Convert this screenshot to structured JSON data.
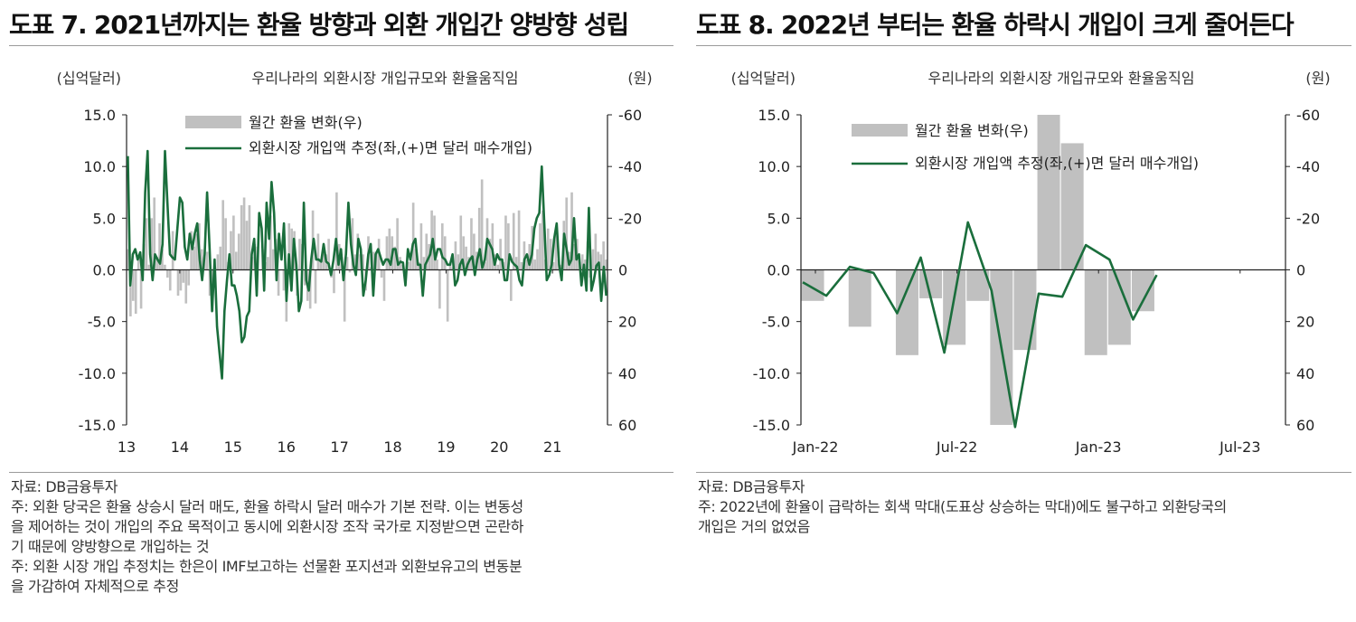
{
  "panels": [
    {
      "title": "도표 7. 2021년까지는 환율 방향과 외환 개입간 양방향 성립",
      "source": "자료: DB금융투자",
      "notes": [
        "주: 외환 당국은 환율 상승시 달러 매도, 환율 하락시 달러 매수가 기본 전략. 이는 변동성",
        "을 제어하는 것이 개입의 주요 목적이고 동시에 외환시장 조작 국가로 지정받으면 곤란하",
        "기 때문에 양방향으로 개입하는 것",
        " 주: 외환 시장 개입 추정치는 한은이 IMF보고하는 선물환 포지션과 외환보유고의 변동분",
        "을 가감하여 자체적으로 추정"
      ]
    },
    {
      "title": "도표 8. 2022년 부터는 환율 하락시 개입이 크게 줄어든다",
      "source": "자료: DB금융투자",
      "notes": [
        "주: 2022년에 환율이 급락하는 회색 막대(도표상 상승하는 막대)에도 불구하고 외환당국의",
        "개입은 거의 없었음"
      ]
    }
  ],
  "chart_data": [
    {
      "type": "bar+line",
      "title": "우리나라의 외환시장 개입규모와 환율움직임",
      "ylabel_left": "(십억달러)",
      "ylabel_right": "(원)",
      "ylim_left": [
        -15,
        15
      ],
      "ylim_right": [
        60,
        -60
      ],
      "yticks_left": [
        "15.0",
        "10.0",
        "5.0",
        "0.0",
        "-5.0",
        "-10.0",
        "-15.0"
      ],
      "yticks_right": [
        "-60",
        "-40",
        "-20",
        "0",
        "20",
        "40",
        "60"
      ],
      "xticks": [
        "13",
        "14",
        "15",
        "16",
        "17",
        "18",
        "19",
        "20",
        "21"
      ],
      "x_start": 2013,
      "legend": [
        "월간 환율 변화(우)",
        "외환시장 개입액 추정(좌,(+)면 달러 매수개입)"
      ],
      "colors": {
        "bar": "#c0c0c0",
        "line": "#1a6e3c"
      },
      "series": [
        {
          "name": "월간 환율 변화(우)",
          "axis": "right",
          "values": [
            -8,
            18,
            12,
            17,
            -5,
            15,
            -10,
            -20,
            -2,
            -20,
            -28,
            -5,
            -18,
            -8,
            -2,
            3,
            8,
            -15,
            0,
            10,
            8,
            5,
            13,
            6,
            -15,
            -9,
            -14,
            -18,
            -8,
            -5,
            -7,
            10,
            16,
            -1,
            -6,
            -9,
            -27,
            -20,
            -3,
            -15,
            -21,
            -7,
            -14,
            -25,
            -28,
            -19,
            -25,
            -5,
            -10,
            -9,
            0,
            -8,
            -3,
            -5,
            -21,
            -8,
            -12,
            10,
            0,
            8,
            20,
            -18,
            -16,
            -15,
            10,
            -12,
            -10,
            6,
            12,
            15,
            -23,
            13,
            -14,
            -4,
            -8,
            -6,
            -12,
            3,
            9,
            -30,
            -10,
            -5,
            20,
            -5,
            1,
            -20,
            -6,
            -14,
            -6,
            -6,
            8,
            -13,
            -1,
            -7,
            -7,
            -12,
            3,
            12,
            -13,
            -16,
            -13,
            -9,
            -20,
            -5,
            -2,
            5,
            -3,
            -4,
            -26,
            -8,
            -3,
            -18,
            -5,
            -14,
            -10,
            -23,
            -21,
            -4,
            15,
            -18,
            -13,
            20,
            -3,
            -1,
            -11,
            -6,
            -21,
            -13,
            -9,
            -5,
            -20,
            -14,
            -7,
            -24,
            -35,
            -3,
            -20,
            -12,
            -18,
            -6,
            -2,
            -12,
            -3,
            -21,
            -18,
            12,
            -22,
            -5,
            -23,
            -3,
            -11,
            -4,
            -10,
            -17,
            -4,
            -8,
            -18,
            -23,
            -4,
            -16,
            -12,
            -3,
            -15,
            -4,
            -2,
            -19,
            -28,
            -7,
            -30,
            -10,
            -12,
            -3,
            -6,
            -4,
            -11,
            3,
            -8,
            -14,
            -7,
            -6,
            -11,
            -4
          ]
        },
        {
          "name": "외환시장 개입액 추정(좌,(+)면 달러 매수개입)",
          "axis": "left",
          "values": [
            11,
            -1.5,
            1.5,
            2,
            1,
            1.7,
            -1,
            7.5,
            11.5,
            1.5,
            -1,
            1.5,
            1,
            0.6,
            2.5,
            11.5,
            6.5,
            1.5,
            1.2,
            1,
            4,
            7,
            6.5,
            2.2,
            1,
            3.5,
            2,
            3.5,
            4.5,
            1,
            -1,
            1.5,
            7.5,
            2,
            -4,
            1,
            -5.5,
            -8,
            -10.5,
            -4,
            -1,
            1.5,
            -1.5,
            -1.5,
            -2.5,
            -4,
            -7,
            -6.5,
            -4.5,
            -4,
            1.5,
            3,
            -2.5,
            5.5,
            4,
            -2,
            6.5,
            3,
            8.5,
            5.5,
            -1,
            3.5,
            1,
            4.5,
            -3,
            1.5,
            -2,
            3,
            0.5,
            -4,
            -3,
            6.5,
            -1,
            -2,
            1,
            3,
            1,
            1,
            0.8,
            2.5,
            0.8,
            0.6,
            -0.5,
            1,
            3,
            0.5,
            2,
            -1,
            1.5,
            6.5,
            2.5,
            0.5,
            -0.5,
            3,
            2,
            -2.5,
            -1,
            1.5,
            2.5,
            -2.5,
            1.5,
            2,
            1.2,
            0.5,
            1,
            1,
            0.5,
            2,
            2,
            0.5,
            0.8,
            0.7,
            -1.5,
            2,
            1,
            2.5,
            3,
            0.5,
            0.5,
            -2.5,
            0.5,
            1,
            1.5,
            3,
            1,
            2,
            2,
            1.2,
            1,
            0.5,
            0.5,
            1.5,
            -1.5,
            -1,
            0.5,
            1,
            -0.5,
            0.5,
            1,
            1.3,
            -0.5,
            1,
            2,
            0.2,
            1,
            3,
            2.5,
            2,
            0.5,
            1.5,
            1,
            1,
            -1,
            -1,
            1.5,
            0.8,
            0.5,
            0.3,
            -1,
            -1.5,
            1,
            1.5,
            0.5,
            1.5,
            4,
            5,
            5.5,
            10,
            4.5,
            -1,
            -0.5,
            0.5,
            3,
            4.5,
            0.5,
            -1,
            3.5,
            2,
            0.5,
            1,
            5,
            1,
            1.5,
            -1.5,
            0.5,
            -2,
            6,
            -2,
            -1,
            0.4,
            0.7,
            -3,
            0.3,
            -2.5
          ]
        }
      ]
    },
    {
      "type": "bar+line",
      "title": "우리나라의 외환시장 개입규모와 환율움직임",
      "ylabel_left": "(십억달러)",
      "ylabel_right": "(원)",
      "ylim_left": [
        -15,
        15
      ],
      "ylim_right": [
        60,
        -60
      ],
      "yticks_left": [
        "15.0",
        "10.0",
        "5.0",
        "0.0",
        "-5.0",
        "-10.0",
        "-15.0"
      ],
      "yticks_right": [
        "-60",
        "-40",
        "-20",
        "0",
        "20",
        "40",
        "60"
      ],
      "xticks": [
        "Jan-22",
        "Jul-22",
        "Jan-23",
        "Jul-23"
      ],
      "categories": [
        "Jan-22",
        "Feb-22",
        "Mar-22",
        "Apr-22",
        "May-22",
        "Jun-22",
        "Jul-22",
        "Aug-22",
        "Sep-22",
        "Oct-22",
        "Nov-22",
        "Dec-22",
        "Jan-23",
        "Feb-23",
        "Mar-23",
        "Apr-23",
        "May-23",
        "Jun-23",
        "Jul-23"
      ],
      "legend": [
        "월간 환율 변화(우)",
        "외환시장 개입액 추정(좌,(+)면 달러 매수개입)"
      ],
      "colors": {
        "bar": "#c0c0c0",
        "line": "#1a6e3c"
      },
      "series": [
        {
          "name": "월간 환율 변화(우)",
          "axis": "right",
          "values": [
            12,
            0,
            22,
            0,
            33,
            11,
            29,
            12,
            60,
            31,
            -60,
            -49,
            33,
            29,
            16,
            null,
            null,
            null,
            null
          ]
        },
        {
          "name": "외환시장 개입액 추정(좌,(+)면 달러 매수개입)",
          "axis": "left",
          "values": [
            -1.2,
            -2.5,
            0.3,
            -0.3,
            -4.2,
            1.2,
            -8,
            4.6,
            -2,
            -15.2,
            -2.3,
            -2.6,
            2.4,
            1,
            -4.8,
            -0.5,
            null,
            null,
            null
          ]
        }
      ]
    }
  ]
}
